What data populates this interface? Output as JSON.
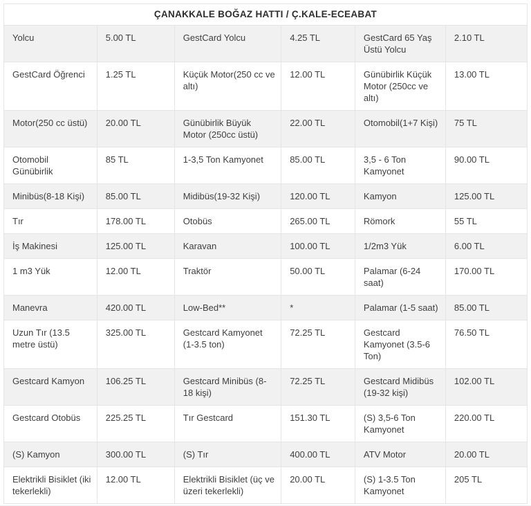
{
  "table": {
    "title": "ÇANAKKALE BOĞAZ HATTI / Ç.KALE-ECEABAT",
    "colors": {
      "row_alternate_bg": "#f1f1f2",
      "row_bg": "#ffffff",
      "border": "#e4e4e7",
      "text": "#3f3f3f",
      "title_text": "#2e2e2e"
    },
    "rows": [
      [
        "Yolcu",
        "5.00 TL",
        "GestCard Yolcu",
        "4.25 TL",
        "GestCard 65 Yaş Üstü Yolcu",
        "2.10 TL"
      ],
      [
        "GestCard Öğrenci",
        "1.25 TL",
        "Küçük Motor(250 cc ve altı)",
        "12.00 TL",
        "Günübirlik Küçük Motor (250cc ve altı)",
        "13.00 TL"
      ],
      [
        "Motor(250 cc üstü)",
        "20.00 TL",
        "Günübirlik Büyük Motor (250cc üstü)",
        "22.00 TL",
        "Otomobil(1+7 Kişi)",
        "75 TL"
      ],
      [
        "Otomobil Günübirlik",
        "85 TL",
        "1-3,5 Ton Kamyonet",
        "85.00 TL",
        "3,5 - 6 Ton Kamyonet",
        "90.00 TL"
      ],
      [
        "Minibüs(8-18 Kişi)",
        "85.00 TL",
        "Midibüs(19-32 Kişi)",
        "120.00 TL",
        "Kamyon",
        "125.00 TL"
      ],
      [
        "Tır",
        "178.00 TL",
        "Otobüs",
        "265.00 TL",
        "Römork",
        "55 TL"
      ],
      [
        "İş Makinesi",
        "125.00 TL",
        "Karavan",
        "100.00 TL",
        "1/2m3 Yük",
        "6.00 TL"
      ],
      [
        "1 m3 Yük",
        "12.00 TL",
        "Traktör",
        "50.00 TL",
        "Palamar (6-24 saat)",
        "170.00 TL"
      ],
      [
        "Manevra",
        "420.00 TL",
        "Low-Bed**",
        "*",
        "Palamar (1-5 saat)",
        "85.00 TL"
      ],
      [
        "Uzun Tır (13.5 metre üstü)",
        "325.00 TL",
        "Gestcard Kamyonet (1-3.5 ton)",
        "72.25 TL",
        "Gestcard Kamyonet (3.5-6 Ton)",
        "76.50 TL"
      ],
      [
        "Gestcard Kamyon",
        "106.25 TL",
        "Gestcard Minibüs (8-18 kişi)",
        "72.25 TL",
        "Gestcard Midibüs (19-32 kişi)",
        "102.00 TL"
      ],
      [
        "Gestcard Otobüs",
        "225.25 TL",
        "Tır Gestcard",
        "151.30 TL",
        "(S) 3,5-6 Ton Kamyonet",
        "220.00 TL"
      ],
      [
        "(S) Kamyon",
        "300.00 TL",
        "(S) Tır",
        "400.00 TL",
        "ATV Motor",
        "20.00 TL"
      ],
      [
        "Elektrikli Bisiklet (iki tekerlekli)",
        "12.00 TL",
        "Elektrikli Bisiklet (üç ve üzeri tekerlekli)",
        "20.00 TL",
        "(S) 1-3.5 Ton Kamyonet",
        "205 TL"
      ]
    ]
  }
}
